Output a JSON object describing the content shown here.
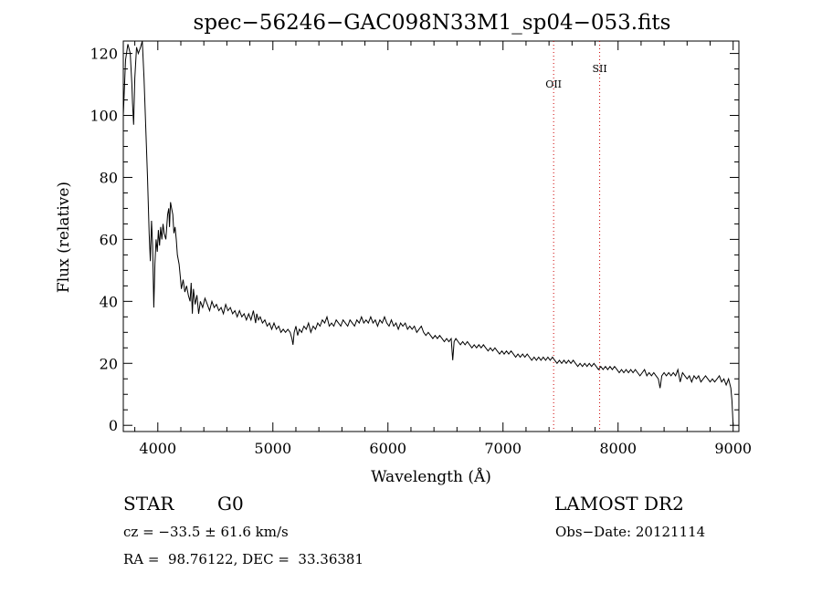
{
  "chart_data": {
    "type": "line",
    "title": "spec−56246−GAC098N33M1_sp04−053.fits",
    "xlabel": "Wavelength (Å)",
    "ylabel": "Flux (relative)",
    "xlim": [
      3700,
      9050
    ],
    "ylim": [
      -2,
      124
    ],
    "xticks": [
      4000,
      5000,
      6000,
      7000,
      8000,
      9000
    ],
    "yticks": [
      0,
      20,
      40,
      60,
      80,
      100,
      120
    ],
    "grid": false,
    "series": [
      {
        "color": "#000000",
        "points": [
          [
            3700,
            100
          ],
          [
            3720,
            118
          ],
          [
            3740,
            123
          ],
          [
            3760,
            120
          ],
          [
            3775,
            110
          ],
          [
            3780,
            104
          ],
          [
            3790,
            97
          ],
          [
            3800,
            112
          ],
          [
            3815,
            122
          ],
          [
            3830,
            120
          ],
          [
            3850,
            122
          ],
          [
            3865,
            124
          ],
          [
            3880,
            112
          ],
          [
            3895,
            96
          ],
          [
            3910,
            80
          ],
          [
            3925,
            62
          ],
          [
            3935,
            53
          ],
          [
            3945,
            66
          ],
          [
            3955,
            58
          ],
          [
            3965,
            38
          ],
          [
            3975,
            52
          ],
          [
            3985,
            60
          ],
          [
            3995,
            56
          ],
          [
            4005,
            63
          ],
          [
            4015,
            58
          ],
          [
            4025,
            64
          ],
          [
            4035,
            60
          ],
          [
            4045,
            65
          ],
          [
            4055,
            62
          ],
          [
            4070,
            60
          ],
          [
            4085,
            68
          ],
          [
            4095,
            70
          ],
          [
            4102,
            64
          ],
          [
            4110,
            72
          ],
          [
            4120,
            70
          ],
          [
            4130,
            68
          ],
          [
            4140,
            62
          ],
          [
            4150,
            64
          ],
          [
            4160,
            60
          ],
          [
            4170,
            55
          ],
          [
            4185,
            52
          ],
          [
            4195,
            48
          ],
          [
            4205,
            44
          ],
          [
            4220,
            47
          ],
          [
            4235,
            43
          ],
          [
            4250,
            45
          ],
          [
            4265,
            42
          ],
          [
            4280,
            40
          ],
          [
            4290,
            46
          ],
          [
            4300,
            36
          ],
          [
            4310,
            44
          ],
          [
            4325,
            39
          ],
          [
            4340,
            42
          ],
          [
            4355,
            36
          ],
          [
            4370,
            40
          ],
          [
            4390,
            38
          ],
          [
            4410,
            41
          ],
          [
            4430,
            39
          ],
          [
            4450,
            37
          ],
          [
            4470,
            40
          ],
          [
            4490,
            38
          ],
          [
            4510,
            39
          ],
          [
            4530,
            37
          ],
          [
            4550,
            38
          ],
          [
            4570,
            36
          ],
          [
            4590,
            39
          ],
          [
            4610,
            37
          ],
          [
            4630,
            38
          ],
          [
            4650,
            36
          ],
          [
            4670,
            37
          ],
          [
            4690,
            35
          ],
          [
            4710,
            37
          ],
          [
            4730,
            35
          ],
          [
            4750,
            36
          ],
          [
            4770,
            34
          ],
          [
            4790,
            36
          ],
          [
            4810,
            34
          ],
          [
            4830,
            37
          ],
          [
            4850,
            33
          ],
          [
            4860,
            36
          ],
          [
            4875,
            34
          ],
          [
            4890,
            35
          ],
          [
            4910,
            33
          ],
          [
            4930,
            34
          ],
          [
            4950,
            32
          ],
          [
            4970,
            33
          ],
          [
            4990,
            31
          ],
          [
            5010,
            33
          ],
          [
            5030,
            31
          ],
          [
            5050,
            32
          ],
          [
            5070,
            30
          ],
          [
            5090,
            31
          ],
          [
            5110,
            30
          ],
          [
            5130,
            31
          ],
          [
            5150,
            30
          ],
          [
            5165,
            28
          ],
          [
            5175,
            26
          ],
          [
            5185,
            30
          ],
          [
            5200,
            32
          ],
          [
            5215,
            29
          ],
          [
            5230,
            31
          ],
          [
            5250,
            30
          ],
          [
            5270,
            32
          ],
          [
            5290,
            31
          ],
          [
            5310,
            33
          ],
          [
            5330,
            30
          ],
          [
            5350,
            32
          ],
          [
            5370,
            31
          ],
          [
            5390,
            33
          ],
          [
            5410,
            32
          ],
          [
            5430,
            34
          ],
          [
            5450,
            33
          ],
          [
            5470,
            35
          ],
          [
            5490,
            32
          ],
          [
            5510,
            33
          ],
          [
            5530,
            32
          ],
          [
            5550,
            34
          ],
          [
            5570,
            33
          ],
          [
            5590,
            32
          ],
          [
            5610,
            34
          ],
          [
            5630,
            33
          ],
          [
            5650,
            32
          ],
          [
            5670,
            34
          ],
          [
            5690,
            33
          ],
          [
            5710,
            32
          ],
          [
            5730,
            34
          ],
          [
            5750,
            33
          ],
          [
            5770,
            35
          ],
          [
            5790,
            33
          ],
          [
            5810,
            34
          ],
          [
            5830,
            33
          ],
          [
            5850,
            35
          ],
          [
            5870,
            33
          ],
          [
            5890,
            34
          ],
          [
            5910,
            32
          ],
          [
            5930,
            34
          ],
          [
            5950,
            33
          ],
          [
            5970,
            35
          ],
          [
            5990,
            33
          ],
          [
            6010,
            32
          ],
          [
            6030,
            34
          ],
          [
            6050,
            32
          ],
          [
            6070,
            33
          ],
          [
            6090,
            31
          ],
          [
            6110,
            33
          ],
          [
            6130,
            32
          ],
          [
            6150,
            33
          ],
          [
            6170,
            31
          ],
          [
            6190,
            32
          ],
          [
            6210,
            31
          ],
          [
            6230,
            32
          ],
          [
            6250,
            30
          ],
          [
            6270,
            31
          ],
          [
            6290,
            32
          ],
          [
            6310,
            30
          ],
          [
            6330,
            29
          ],
          [
            6350,
            30
          ],
          [
            6370,
            29
          ],
          [
            6390,
            28
          ],
          [
            6410,
            29
          ],
          [
            6430,
            28
          ],
          [
            6450,
            29
          ],
          [
            6470,
            28
          ],
          [
            6490,
            27
          ],
          [
            6510,
            28
          ],
          [
            6530,
            27
          ],
          [
            6550,
            28
          ],
          [
            6563,
            21
          ],
          [
            6575,
            27
          ],
          [
            6590,
            28
          ],
          [
            6610,
            27
          ],
          [
            6630,
            26
          ],
          [
            6650,
            27
          ],
          [
            6670,
            26
          ],
          [
            6690,
            27
          ],
          [
            6710,
            26
          ],
          [
            6730,
            25
          ],
          [
            6750,
            26
          ],
          [
            6770,
            25
          ],
          [
            6790,
            26
          ],
          [
            6810,
            25
          ],
          [
            6830,
            26
          ],
          [
            6850,
            25
          ],
          [
            6870,
            24
          ],
          [
            6890,
            25
          ],
          [
            6910,
            24
          ],
          [
            6930,
            25
          ],
          [
            6950,
            24
          ],
          [
            6970,
            23
          ],
          [
            6990,
            24
          ],
          [
            7010,
            23
          ],
          [
            7030,
            24
          ],
          [
            7050,
            23
          ],
          [
            7070,
            24
          ],
          [
            7090,
            23
          ],
          [
            7110,
            22
          ],
          [
            7130,
            23
          ],
          [
            7150,
            22
          ],
          [
            7170,
            23
          ],
          [
            7190,
            22
          ],
          [
            7210,
            23
          ],
          [
            7230,
            22
          ],
          [
            7250,
            21
          ],
          [
            7270,
            22
          ],
          [
            7290,
            21
          ],
          [
            7310,
            22
          ],
          [
            7330,
            21
          ],
          [
            7350,
            22
          ],
          [
            7370,
            21
          ],
          [
            7390,
            22
          ],
          [
            7410,
            21
          ],
          [
            7430,
            22
          ],
          [
            7450,
            21
          ],
          [
            7470,
            20
          ],
          [
            7490,
            21
          ],
          [
            7510,
            20
          ],
          [
            7530,
            21
          ],
          [
            7550,
            20
          ],
          [
            7570,
            21
          ],
          [
            7590,
            20
          ],
          [
            7610,
            21
          ],
          [
            7630,
            20
          ],
          [
            7650,
            19
          ],
          [
            7670,
            20
          ],
          [
            7690,
            19
          ],
          [
            7710,
            20
          ],
          [
            7730,
            19
          ],
          [
            7750,
            20
          ],
          [
            7770,
            19
          ],
          [
            7790,
            20
          ],
          [
            7810,
            19
          ],
          [
            7830,
            18
          ],
          [
            7850,
            19
          ],
          [
            7870,
            18
          ],
          [
            7890,
            19
          ],
          [
            7910,
            18
          ],
          [
            7930,
            19
          ],
          [
            7950,
            18
          ],
          [
            7970,
            19
          ],
          [
            7990,
            18
          ],
          [
            8010,
            17
          ],
          [
            8030,
            18
          ],
          [
            8050,
            17
          ],
          [
            8070,
            18
          ],
          [
            8090,
            17
          ],
          [
            8110,
            18
          ],
          [
            8130,
            17
          ],
          [
            8150,
            18
          ],
          [
            8170,
            17
          ],
          [
            8190,
            16
          ],
          [
            8210,
            17
          ],
          [
            8230,
            18
          ],
          [
            8250,
            16
          ],
          [
            8270,
            17
          ],
          [
            8290,
            16
          ],
          [
            8310,
            17
          ],
          [
            8330,
            16
          ],
          [
            8350,
            15
          ],
          [
            8365,
            12
          ],
          [
            8380,
            16
          ],
          [
            8400,
            17
          ],
          [
            8420,
            16
          ],
          [
            8440,
            17
          ],
          [
            8460,
            16
          ],
          [
            8480,
            17
          ],
          [
            8500,
            16
          ],
          [
            8520,
            18
          ],
          [
            8540,
            14
          ],
          [
            8560,
            17
          ],
          [
            8580,
            16
          ],
          [
            8600,
            15
          ],
          [
            8620,
            16
          ],
          [
            8640,
            14
          ],
          [
            8660,
            16
          ],
          [
            8680,
            15
          ],
          [
            8700,
            16
          ],
          [
            8720,
            14
          ],
          [
            8740,
            15
          ],
          [
            8760,
            16
          ],
          [
            8780,
            15
          ],
          [
            8800,
            14
          ],
          [
            8820,
            15
          ],
          [
            8840,
            14
          ],
          [
            8860,
            15
          ],
          [
            8880,
            16
          ],
          [
            8900,
            14
          ],
          [
            8920,
            15
          ],
          [
            8940,
            13
          ],
          [
            8960,
            15
          ],
          [
            8980,
            12
          ],
          [
            8990,
            8
          ],
          [
            9000,
            0
          ]
        ]
      }
    ],
    "annotations": [
      {
        "label": "OII",
        "x": 7440,
        "label_y": 109,
        "color": "#cc0000"
      },
      {
        "label": "SII",
        "x": 7840,
        "label_y": 114,
        "color": "#cc0000"
      }
    ]
  },
  "info": {
    "class": "STAR",
    "subclass": "G0",
    "survey": "LAMOST DR2",
    "cz": "cz = −33.5 ± 61.6 km/s",
    "obs_date": "Obs−Date: 20121114",
    "radec": "RA =  98.76122, DEC =  33.36381"
  }
}
